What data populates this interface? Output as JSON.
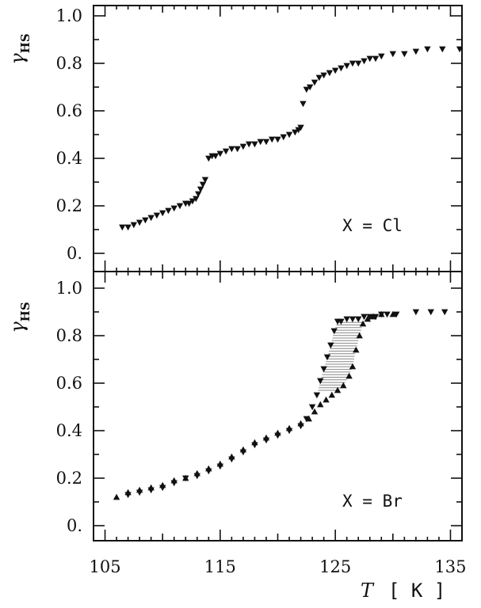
{
  "chart_data": [
    {
      "type": "scatter",
      "panel": "top",
      "annotation": "X = Cl",
      "ylabel": "γ",
      "ylabel_sub": "HS",
      "ylim": [
        0,
        1.05
      ],
      "yticks": [
        0,
        0.2,
        0.4,
        0.6,
        0.8,
        1.0
      ],
      "ytick_labels": [
        "0.",
        "0.2",
        "0.4",
        "0.6",
        "0.8",
        "1.0"
      ],
      "xlim": [
        104,
        136
      ],
      "xticks": [
        105,
        115,
        125,
        135
      ],
      "series": [
        {
          "marker": "triangle-down",
          "x": [
            106.5,
            107,
            107.5,
            108,
            108.5,
            109,
            109.5,
            110,
            110.5,
            111,
            111.5,
            112,
            112.3,
            112.6,
            112.9,
            113.1,
            113.3,
            113.5,
            113.7,
            114,
            114.3,
            114.6,
            115,
            115.5,
            116,
            116.5,
            117,
            117.5,
            118,
            118.5,
            119,
            119.5,
            120,
            120.5,
            121,
            121.5,
            121.8,
            122,
            122.2,
            122.5,
            122.8,
            123.2,
            123.6,
            124,
            124.5,
            125,
            125.5,
            126,
            126.5,
            127,
            127.5,
            128,
            128.5,
            129,
            130,
            131,
            132,
            133,
            134.3,
            135.8
          ],
          "y": [
            0.11,
            0.11,
            0.12,
            0.13,
            0.14,
            0.15,
            0.16,
            0.17,
            0.18,
            0.19,
            0.2,
            0.21,
            0.21,
            0.22,
            0.23,
            0.25,
            0.27,
            0.29,
            0.31,
            0.4,
            0.41,
            0.41,
            0.42,
            0.43,
            0.44,
            0.44,
            0.45,
            0.46,
            0.46,
            0.47,
            0.47,
            0.48,
            0.48,
            0.49,
            0.5,
            0.51,
            0.52,
            0.53,
            0.63,
            0.69,
            0.7,
            0.72,
            0.74,
            0.75,
            0.76,
            0.77,
            0.78,
            0.79,
            0.8,
            0.8,
            0.81,
            0.82,
            0.82,
            0.83,
            0.84,
            0.84,
            0.85,
            0.86,
            0.86,
            0.86
          ]
        }
      ]
    },
    {
      "type": "scatter",
      "panel": "bottom",
      "annotation": "X = Br",
      "xlabel": "T",
      "xlabel_unit": "[ K ]",
      "ylabel": "γ",
      "ylabel_sub": "HS",
      "ylim": [
        0,
        1.05
      ],
      "yticks": [
        0,
        0.2,
        0.4,
        0.6,
        0.8,
        1.0
      ],
      "ytick_labels": [
        "0.",
        "0.2",
        "0.4",
        "0.6",
        "0.8",
        "1.0"
      ],
      "xlim": [
        104,
        136
      ],
      "xticks": [
        105,
        115,
        125,
        135
      ],
      "xtick_labels": [
        "105",
        "115",
        "125",
        "135"
      ],
      "series": [
        {
          "marker": "triangle-up",
          "x": [
            106,
            107,
            108,
            109,
            110,
            111,
            112,
            113,
            114,
            115,
            116,
            117,
            118,
            119,
            120,
            121,
            122,
            122.7,
            123.2,
            123.7,
            124.2,
            124.7,
            125.2,
            125.7,
            126.2,
            126.5,
            126.8,
            127.1,
            127.4,
            127.8,
            128.3,
            129,
            130
          ],
          "y": [
            0.12,
            0.14,
            0.15,
            0.16,
            0.17,
            0.19,
            0.2,
            0.22,
            0.24,
            0.26,
            0.29,
            0.32,
            0.35,
            0.37,
            0.39,
            0.41,
            0.43,
            0.45,
            0.48,
            0.51,
            0.53,
            0.55,
            0.57,
            0.59,
            0.63,
            0.67,
            0.74,
            0.8,
            0.85,
            0.87,
            0.88,
            0.89,
            0.89
          ]
        },
        {
          "marker": "triangle-down",
          "x": [
            107,
            108,
            109,
            110,
            111,
            112,
            113,
            114,
            115,
            116,
            117,
            118,
            119,
            120,
            121,
            122,
            122.5,
            123,
            123.4,
            123.7,
            124,
            124.3,
            124.6,
            124.9,
            125.2,
            125.5,
            126,
            126.5,
            127,
            127.5,
            128,
            128.5,
            129,
            129.5,
            130.3,
            132,
            133.3,
            134.5
          ],
          "y": [
            0.13,
            0.14,
            0.15,
            0.16,
            0.18,
            0.2,
            0.21,
            0.23,
            0.25,
            0.28,
            0.31,
            0.34,
            0.36,
            0.38,
            0.4,
            0.42,
            0.45,
            0.5,
            0.55,
            0.61,
            0.66,
            0.71,
            0.76,
            0.82,
            0.86,
            0.86,
            0.87,
            0.87,
            0.87,
            0.88,
            0.88,
            0.88,
            0.89,
            0.89,
            0.89,
            0.9,
            0.9,
            0.9
          ]
        }
      ]
    }
  ]
}
